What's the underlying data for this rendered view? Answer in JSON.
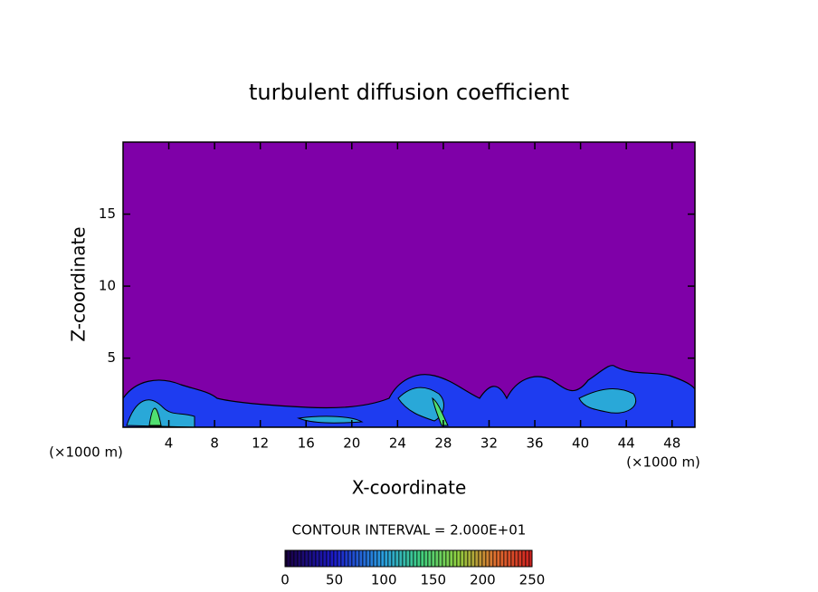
{
  "chart_data": {
    "type": "contour",
    "title": "turbulent diffusion coefficient",
    "x_label": "X-coordinate",
    "y_label": "Z-coordinate",
    "x_unit": "(×1000 m)",
    "contour_interval": "CONTOUR INTERVAL = 2.000E+01",
    "xlim": [
      0,
      50
    ],
    "xticks": [
      4,
      8,
      12,
      16,
      20,
      24,
      28,
      32,
      36,
      40,
      44,
      48
    ],
    "ylim": [
      0.2,
      20
    ],
    "yticks": [
      5,
      10,
      15
    ],
    "clim": [
      0,
      250
    ],
    "cticks": [
      0,
      50,
      100,
      150,
      200,
      250
    ],
    "background_color": "#7f00a8"
  }
}
